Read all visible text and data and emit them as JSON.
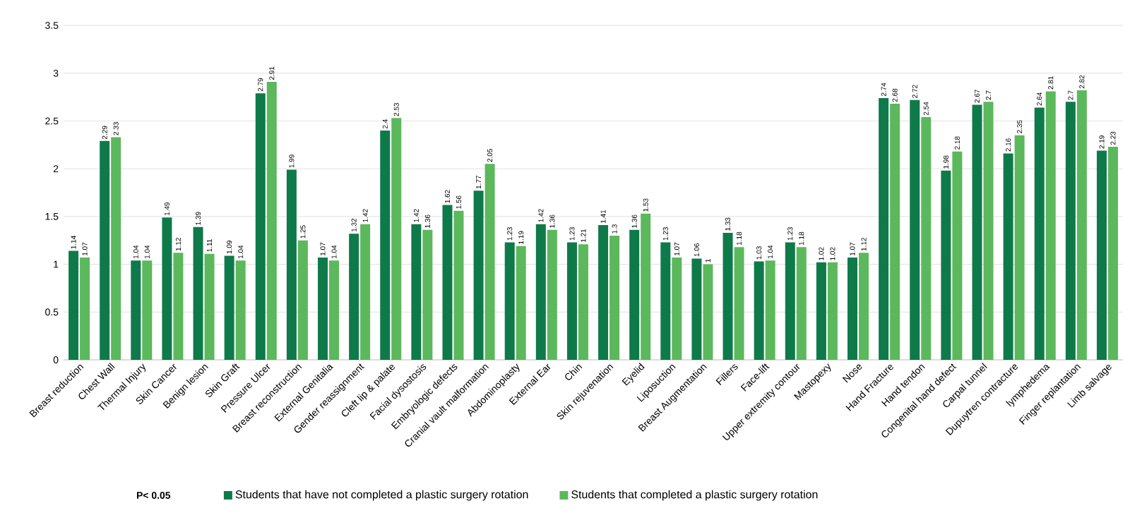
{
  "chart_data": {
    "type": "bar",
    "categories": [
      "Breast reduction",
      "Chest Wall",
      "Thermal Injury",
      "Skin Cancer",
      "Benign lesion",
      "Skin Graft",
      "Pressure Ulcer",
      "Breast reconstruction",
      "External Genitalia",
      "Gender reassignment",
      "Cleft lip & palate",
      "Facial dysostosis",
      "Embryologic defects",
      "Cranial vault malformation",
      "Abdominoplasty",
      "External Ear",
      "Chin",
      "Skin rejuvenation",
      "Eyelid",
      "Liposuction",
      "Breast Augmentation",
      "Fillers",
      "Face-lift",
      "Upper extremity contour",
      "Mastopexy",
      "Nose",
      "Hand Fracture",
      "Hand tendon",
      "Congenital hand defect",
      "Carpal tunnel",
      "Dupuytren contracture",
      "lymphedema",
      "Finger replantation",
      "Limb salvage"
    ],
    "series": [
      {
        "name": "Students that have not completed a plastic surgery rotation",
        "color": "#0e7a4a",
        "values": [
          1.14,
          2.29,
          1.04,
          1.49,
          1.39,
          1.09,
          2.79,
          1.99,
          1.07,
          1.32,
          2.4,
          1.42,
          1.62,
          1.77,
          1.23,
          1.42,
          1.23,
          1.41,
          1.36,
          1.23,
          1.06,
          1.33,
          1.03,
          1.23,
          1.02,
          1.07,
          2.74,
          2.72,
          1.98,
          2.67,
          2.16,
          2.64,
          2.7,
          2.19
        ]
      },
      {
        "name": "Students that completed a plastic surgery rotation",
        "color": "#5cb85c",
        "values": [
          1.07,
          2.33,
          1.04,
          1.12,
          1.11,
          1.04,
          2.91,
          1.25,
          1.04,
          1.42,
          2.53,
          1.36,
          1.56,
          2.05,
          1.19,
          1.36,
          1.21,
          1.3,
          1.53,
          1.07,
          1,
          1.18,
          1.04,
          1.18,
          1.02,
          1.12,
          2.68,
          2.54,
          2.18,
          2.7,
          2.35,
          2.81,
          2.82,
          2.23
        ]
      }
    ],
    "ylim": [
      0,
      3.5
    ],
    "yticks": [
      0,
      0.5,
      1,
      1.5,
      2,
      2.5,
      3,
      3.5
    ],
    "grid": "y",
    "legend": "bottom",
    "data_labels": true,
    "annotations": [
      "P< 0.05"
    ]
  }
}
